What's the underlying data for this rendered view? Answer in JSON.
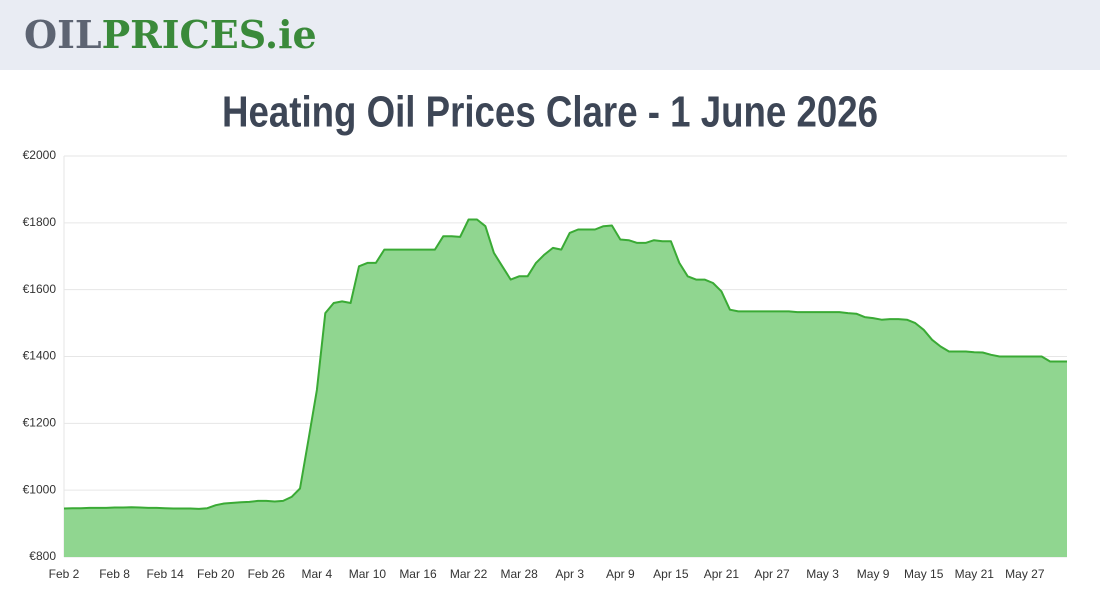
{
  "header": {
    "logo_part1": "OIL",
    "logo_part2": "PRICES.ie"
  },
  "chart_data": {
    "type": "area",
    "title": "Heating Oil Prices Clare - 1 June 2026",
    "categories": [
      "Feb 2",
      null,
      null,
      null,
      null,
      null,
      "Feb 8",
      null,
      null,
      null,
      null,
      null,
      "Feb 14",
      null,
      null,
      null,
      null,
      null,
      "Feb 20",
      null,
      null,
      null,
      null,
      null,
      "Feb 26",
      null,
      null,
      null,
      null,
      null,
      "Mar 4",
      null,
      null,
      null,
      null,
      null,
      "Mar 10",
      null,
      null,
      null,
      null,
      null,
      "Mar 16",
      null,
      null,
      null,
      null,
      null,
      "Mar 22",
      null,
      null,
      null,
      null,
      null,
      "Mar 28",
      null,
      null,
      null,
      null,
      null,
      "Apr 3",
      null,
      null,
      null,
      null,
      null,
      "Apr 9",
      null,
      null,
      null,
      null,
      null,
      "Apr 15",
      null,
      null,
      null,
      null,
      null,
      "Apr 21",
      null,
      null,
      null,
      null,
      null,
      "Apr 27",
      null,
      null,
      null,
      null,
      null,
      "May 3",
      null,
      null,
      null,
      null,
      null,
      "May 9",
      null,
      null,
      null,
      null,
      null,
      "May 15",
      null,
      null,
      null,
      null,
      null,
      "May 21",
      null,
      null,
      null,
      null,
      null,
      "May 27",
      null,
      null,
      null,
      null,
      null
    ],
    "values": [
      945,
      946,
      946,
      947,
      947,
      947,
      948,
      948,
      949,
      948,
      947,
      947,
      946,
      945,
      945,
      945,
      944,
      946,
      955,
      960,
      962,
      964,
      965,
      968,
      968,
      966,
      968,
      980,
      1005,
      1150,
      1300,
      1530,
      1560,
      1565,
      1560,
      1670,
      1680,
      1680,
      1720,
      1720,
      1720,
      1720,
      1720,
      1720,
      1720,
      1760,
      1760,
      1758,
      1810,
      1810,
      1790,
      1710,
      1670,
      1630,
      1640,
      1640,
      1680,
      1705,
      1725,
      1720,
      1770,
      1780,
      1780,
      1780,
      1790,
      1792,
      1750,
      1748,
      1740,
      1740,
      1748,
      1745,
      1745,
      1680,
      1640,
      1630,
      1630,
      1620,
      1595,
      1540,
      1535,
      1535,
      1535,
      1535,
      1535,
      1535,
      1535,
      1533,
      1533,
      1533,
      1533,
      1533,
      1533,
      1530,
      1528,
      1518,
      1515,
      1510,
      1512,
      1512,
      1510,
      1500,
      1480,
      1450,
      1430,
      1415,
      1415,
      1415,
      1413,
      1412,
      1405,
      1400,
      1400,
      1400,
      1400,
      1400,
      1400,
      1385,
      1385,
      1385
    ],
    "color": "#3aaa35",
    "fill": "#90d690",
    "ylim": [
      800,
      2000
    ],
    "yticks": [
      {
        "value": 800,
        "label": "€800"
      },
      {
        "value": 1000,
        "label": "€1000"
      },
      {
        "value": 1200,
        "label": "€1200"
      },
      {
        "value": 1400,
        "label": "€1400"
      },
      {
        "value": 1600,
        "label": "€1600"
      },
      {
        "value": 1800,
        "label": "€1800"
      },
      {
        "value": 2000,
        "label": "€2000"
      }
    ],
    "grid": true
  }
}
